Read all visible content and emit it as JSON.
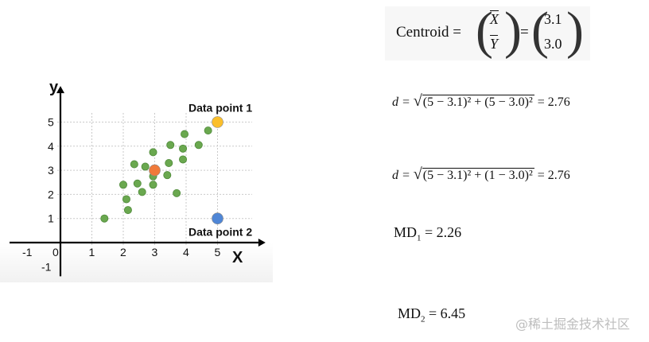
{
  "chart_data": {
    "type": "scatter",
    "xlabel": "X",
    "ylabel": "y",
    "xlim": [
      -1.5,
      6.5
    ],
    "ylim": [
      -1.3,
      6.0
    ],
    "x_ticks": [
      "-1",
      "0",
      "1",
      "2",
      "3",
      "4",
      "5"
    ],
    "y_ticks": [
      "-1",
      "1",
      "2",
      "3",
      "4",
      "5"
    ],
    "grid": true,
    "points": [
      {
        "x": 1.4,
        "y": 1.0
      },
      {
        "x": 2.0,
        "y": 2.4
      },
      {
        "x": 2.1,
        "y": 1.8
      },
      {
        "x": 2.15,
        "y": 1.35
      },
      {
        "x": 2.35,
        "y": 3.25
      },
      {
        "x": 2.45,
        "y": 2.45
      },
      {
        "x": 2.6,
        "y": 2.1
      },
      {
        "x": 2.7,
        "y": 3.15
      },
      {
        "x": 2.95,
        "y": 3.75
      },
      {
        "x": 2.95,
        "y": 2.75
      },
      {
        "x": 2.95,
        "y": 2.4
      },
      {
        "x": 3.4,
        "y": 2.8
      },
      {
        "x": 3.45,
        "y": 3.3
      },
      {
        "x": 3.5,
        "y": 4.05
      },
      {
        "x": 3.7,
        "y": 2.05
      },
      {
        "x": 3.9,
        "y": 3.45
      },
      {
        "x": 3.9,
        "y": 3.9
      },
      {
        "x": 3.95,
        "y": 4.5
      },
      {
        "x": 4.4,
        "y": 4.05
      },
      {
        "x": 4.7,
        "y": 4.65
      }
    ],
    "highlighted": [
      {
        "label": "",
        "x": 3.0,
        "y": 3.0,
        "color": "#f07a3a"
      },
      {
        "label": "Data point 1",
        "x": 5.0,
        "y": 5.0,
        "color": "#fbbf2b"
      },
      {
        "label": "Data point 2",
        "x": 5.0,
        "y": 1.0,
        "color": "#4f86d6"
      }
    ],
    "point_color": "#6aa84f"
  },
  "formulas": {
    "centroid_lhs": "Centroid =",
    "centroid_vec": [
      "X",
      "Y"
    ],
    "centroid_vals": [
      "3.1",
      "3.0"
    ],
    "d1_lhs": "d =",
    "d1_radicand": "(5 − 3.1)² + (5 − 3.0)²",
    "d1_result": "= 2.76",
    "d2_lhs": "d =",
    "d2_radicand": "(5 − 3.1)² + (1 − 3.0)²",
    "d2_result": "= 2.76",
    "md1_name": "MD",
    "md1_sub": "1",
    "md1_value": "= 2.26",
    "md2_name": "MD",
    "md2_sub": "2",
    "md2_value": "= 6.45"
  },
  "watermark": "@稀土掘金技术社区"
}
